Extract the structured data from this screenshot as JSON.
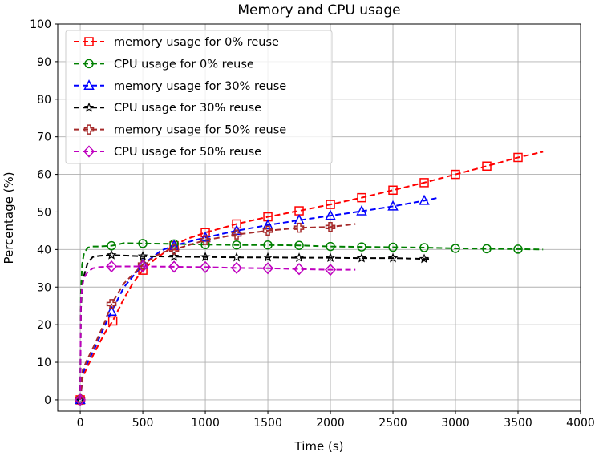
{
  "chart_data": {
    "type": "line",
    "title": "Memory and CPU usage",
    "xlabel": "Time (s)",
    "ylabel": "Percentage (%)",
    "xlim": [
      -180,
      4000
    ],
    "ylim": [
      -3,
      100
    ],
    "xticks": [
      0,
      500,
      1000,
      1500,
      2000,
      2500,
      3000,
      3500,
      4000
    ],
    "yticks": [
      0,
      10,
      20,
      30,
      40,
      50,
      60,
      70,
      80,
      90,
      100
    ],
    "grid": true,
    "legend_position": "top-left",
    "series": [
      {
        "name": "memory usage for 0% reuse",
        "color": "#ff0000",
        "marker": "square",
        "x": [
          0,
          20,
          60,
          120,
          200,
          260,
          350,
          420,
          500,
          600,
          750,
          850,
          1000,
          1250,
          1500,
          1750,
          2000,
          2250,
          2500,
          2750,
          3000,
          3250,
          3500,
          3700
        ],
        "y": [
          0,
          6,
          9,
          13,
          18,
          21,
          27,
          31,
          34.5,
          37.5,
          41,
          42.8,
          44.5,
          46.8,
          48.7,
          50.3,
          52,
          53.8,
          55.8,
          57.8,
          60,
          62.2,
          64.5,
          66
        ],
        "markers_at": [
          0,
          260,
          500,
          750,
          1000,
          1250,
          1500,
          1750,
          2000,
          2250,
          2500,
          2750,
          3000,
          3250,
          3500
        ],
        "marker_values": [
          0,
          21,
          34.5,
          41,
          44.5,
          46.8,
          48.7,
          50.3,
          52,
          53.8,
          55.8,
          57.8,
          60,
          62.2,
          64.5
        ]
      },
      {
        "name": "CPU usage for 0% reuse",
        "color": "#008000",
        "marker": "circle",
        "x": [
          0,
          5,
          15,
          30,
          60,
          100,
          150,
          250,
          350,
          500,
          750,
          1000,
          1250,
          1500,
          1750,
          2000,
          2250,
          2500,
          2750,
          3000,
          3250,
          3500,
          3700
        ],
        "y": [
          0,
          28,
          36,
          39,
          40.5,
          40.8,
          40.8,
          41,
          41.7,
          41.6,
          41.5,
          41.3,
          41.2,
          41.2,
          41.1,
          40.8,
          40.7,
          40.6,
          40.5,
          40.3,
          40.2,
          40.1,
          40
        ],
        "markers_at": [
          0,
          250,
          500,
          750,
          1000,
          1250,
          1500,
          1750,
          2000,
          2250,
          2500,
          2750,
          3000,
          3250,
          3500
        ],
        "marker_values": [
          0,
          41,
          41.6,
          41.5,
          41.3,
          41.2,
          41.2,
          41.1,
          40.8,
          40.7,
          40.6,
          40.5,
          40.3,
          40.2,
          40.1
        ]
      },
      {
        "name": "memory usage for 30% reuse",
        "color": "#0000ff",
        "marker": "triangle",
        "x": [
          0,
          20,
          60,
          120,
          200,
          250,
          350,
          500,
          650,
          750,
          1000,
          1250,
          1500,
          1750,
          2000,
          2250,
          2500,
          2750,
          2850
        ],
        "y": [
          0,
          7,
          10,
          14,
          20,
          23.5,
          30,
          36,
          39.8,
          41,
          43.2,
          45,
          46.5,
          47.8,
          49,
          50.2,
          51.5,
          53,
          53.7
        ],
        "markers_at": [
          0,
          250,
          500,
          750,
          1000,
          1250,
          1500,
          1750,
          2000,
          2250,
          2500,
          2750
        ],
        "marker_values": [
          0,
          23.5,
          36,
          41,
          43.2,
          45,
          46.5,
          47.8,
          49,
          50.2,
          51.5,
          53
        ]
      },
      {
        "name": "CPU usage for 30% reuse",
        "color": "#000000",
        "marker": "star",
        "x": [
          0,
          5,
          15,
          30,
          60,
          100,
          150,
          250,
          500,
          750,
          1000,
          1250,
          1500,
          1750,
          2000,
          2250,
          2500,
          2750,
          2800
        ],
        "y": [
          0,
          24,
          30,
          33,
          36.5,
          38,
          38.3,
          38.5,
          38.2,
          38.1,
          38,
          37.9,
          37.9,
          37.8,
          37.8,
          37.7,
          37.7,
          37.5,
          37.5
        ],
        "markers_at": [
          0,
          250,
          500,
          750,
          1000,
          1250,
          1500,
          1750,
          2000,
          2250,
          2500,
          2750
        ],
        "marker_values": [
          0,
          38.5,
          38.2,
          38.1,
          38,
          37.9,
          37.9,
          37.8,
          37.8,
          37.7,
          37.7,
          37.5
        ]
      },
      {
        "name": "memory usage for 50% reuse",
        "color": "#a52a2a",
        "marker": "plus",
        "x": [
          0,
          20,
          60,
          120,
          200,
          250,
          350,
          500,
          650,
          750,
          1000,
          1250,
          1500,
          1750,
          2000,
          2200
        ],
        "y": [
          0,
          8,
          11,
          15,
          21,
          25.5,
          31,
          36,
          39.2,
          40,
          42.5,
          44,
          45,
          45.8,
          46,
          46.8
        ],
        "markers_at": [
          0,
          250,
          500,
          750,
          1000,
          1250,
          1500,
          1750,
          2000
        ],
        "marker_values": [
          0,
          25.5,
          36,
          40,
          42.5,
          44,
          45,
          45.8,
          46
        ]
      },
      {
        "name": "CPU usage for 50% reuse",
        "color": "#bf00bf",
        "marker": "diamond",
        "x": [
          0,
          5,
          15,
          30,
          60,
          100,
          150,
          250,
          500,
          750,
          1000,
          1250,
          1500,
          1750,
          2000,
          2200
        ],
        "y": [
          0,
          26,
          30,
          32.5,
          34,
          35,
          35.3,
          35.5,
          35.5,
          35.4,
          35.3,
          35.1,
          35,
          34.8,
          34.6,
          34.6
        ],
        "markers_at": [
          0,
          250,
          500,
          750,
          1000,
          1250,
          1500,
          1750,
          2000
        ],
        "marker_values": [
          0,
          35.5,
          35.5,
          35.4,
          35.3,
          35.1,
          35,
          34.8,
          34.6
        ]
      }
    ]
  }
}
